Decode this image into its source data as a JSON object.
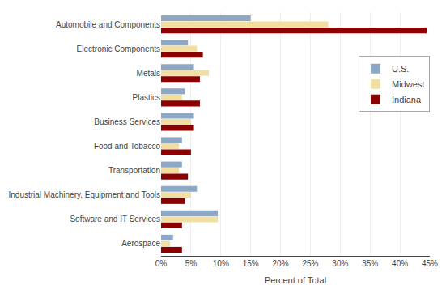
{
  "chart_data": {
    "type": "bar",
    "orientation": "horizontal",
    "categories": [
      "Automobile and Components",
      "Electronic Components",
      "Metals",
      "Plastics",
      "Business Services",
      "Food and Tobacco",
      "Transportation",
      "Industrial Machinery, Equipment and Tools",
      "Software and IT Services",
      "Aerospace"
    ],
    "series": [
      {
        "name": "U.S.",
        "color": "#8CA8C5",
        "values": [
          15.0,
          4.5,
          5.5,
          4.0,
          5.5,
          3.5,
          3.5,
          6.0,
          9.5,
          2.0
        ]
      },
      {
        "name": "Midwest",
        "color": "#F2DFA0",
        "values": [
          28.0,
          6.0,
          8.0,
          3.5,
          5.0,
          3.0,
          3.0,
          5.0,
          9.5,
          1.5
        ]
      },
      {
        "name": "Indiana",
        "color": "#8B0000",
        "values": [
          44.5,
          7.0,
          6.5,
          6.5,
          5.5,
          5.0,
          4.5,
          4.0,
          3.5,
          3.5
        ]
      }
    ],
    "xlabel": "Percent of Total",
    "xlim": [
      0,
      45
    ],
    "xticks": [
      {
        "value": 0,
        "label": "0%"
      },
      {
        "value": 5,
        "label": "5%"
      },
      {
        "value": 10,
        "label": "10%"
      },
      {
        "value": 15,
        "label": "15%"
      },
      {
        "value": 20,
        "label": "20%"
      },
      {
        "value": 25,
        "label": "25%"
      },
      {
        "value": 30,
        "label": "30%"
      },
      {
        "value": 35,
        "label": "35%"
      },
      {
        "value": 40,
        "label": "40%"
      },
      {
        "value": 45,
        "label": "45%"
      }
    ],
    "grid": true,
    "legend": "upper right"
  }
}
